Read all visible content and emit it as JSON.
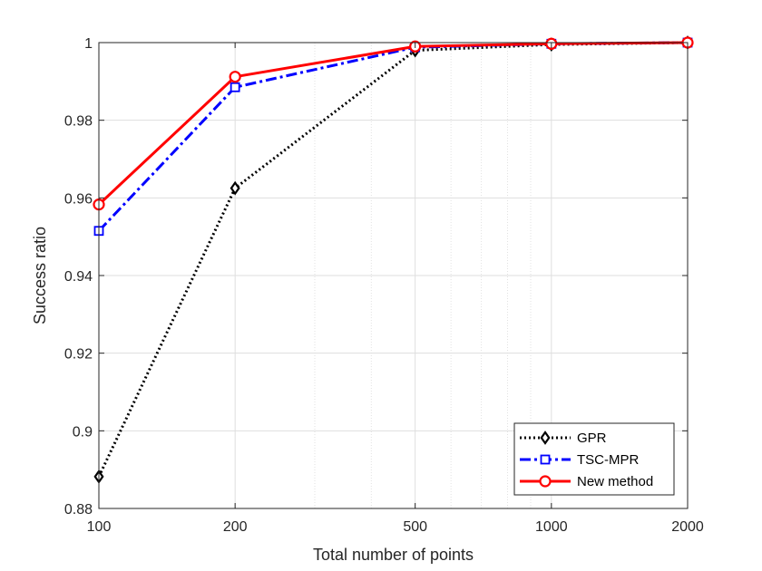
{
  "chart_data": {
    "type": "line",
    "title": "",
    "xlabel": "Total number of points",
    "ylabel": "Success ratio",
    "x_scale": "log",
    "x": [
      100,
      200,
      500,
      1000,
      2000
    ],
    "xticks": [
      "100",
      "200",
      "500",
      "1000",
      "2000"
    ],
    "xlim": [
      100,
      2000
    ],
    "ylim": [
      0.88,
      1.0
    ],
    "yticks": [
      "0.88",
      "0.9",
      "0.92",
      "0.94",
      "0.96",
      "0.98",
      "1"
    ],
    "grid": true,
    "legend_position": "bottom-right",
    "series": [
      {
        "name": "GPR",
        "values": [
          0.8882,
          0.9625,
          0.998,
          0.9995,
          1.0
        ],
        "color": "#000000",
        "line": "dotted",
        "marker": "diamond"
      },
      {
        "name": "TSC-MPR",
        "values": [
          0.9515,
          0.9885,
          0.9988,
          0.9997,
          1.0
        ],
        "color": "#0000ff",
        "line": "dashdot",
        "marker": "square"
      },
      {
        "name": "New method",
        "values": [
          0.9583,
          0.9912,
          0.999,
          0.9997,
          1.0
        ],
        "color": "#ff0000",
        "line": "solid",
        "marker": "circle"
      }
    ]
  }
}
